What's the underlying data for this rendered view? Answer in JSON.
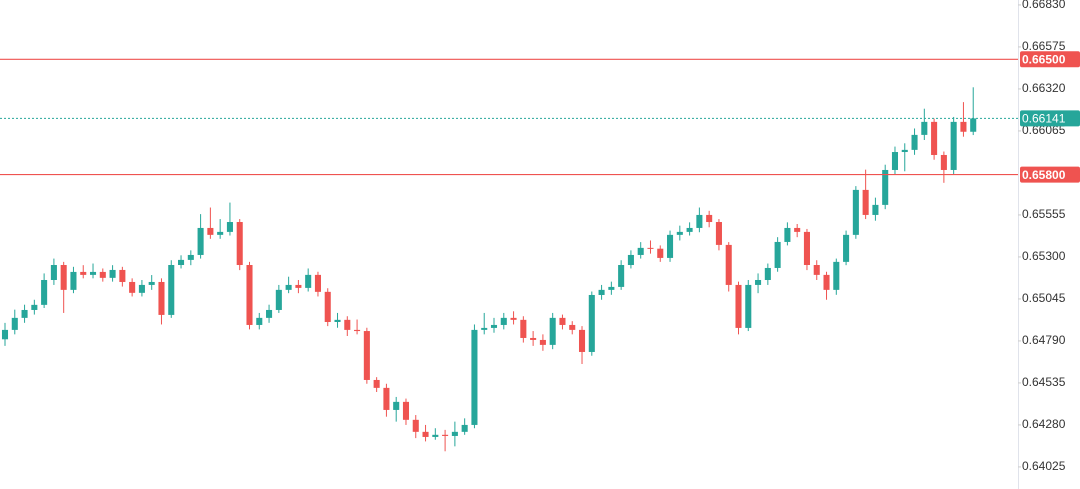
{
  "chart_data": {
    "type": "candlestick",
    "up_color": "#26a69a",
    "down_color": "#ef5350",
    "ylim": [
      0.63891,
      0.6686
    ],
    "yticks": [
      {
        "value": 0.6683,
        "label": "0.66830"
      },
      {
        "value": 0.66575,
        "label": "0.66575"
      },
      {
        "value": 0.6632,
        "label": "0.66320"
      },
      {
        "value": 0.66065,
        "label": "0.66065"
      },
      {
        "value": 0.65555,
        "label": "0.65555"
      },
      {
        "value": 0.653,
        "label": "0.65300"
      },
      {
        "value": 0.65045,
        "label": "0.65045"
      },
      {
        "value": 0.6479,
        "label": "0.64790"
      },
      {
        "value": 0.64535,
        "label": "0.64535"
      },
      {
        "value": 0.6428,
        "label": "0.64280"
      },
      {
        "value": 0.64025,
        "label": "0.64025"
      }
    ],
    "levels": [
      {
        "value": 0.665,
        "label": "0.66500",
        "color": "#ef5350"
      },
      {
        "value": 0.658,
        "label": "0.65800",
        "color": "#ef5350"
      }
    ],
    "last_price": {
      "value": 0.66141,
      "color": "#26a69a"
    },
    "open": [
      0.648,
      0.64857,
      0.6493,
      0.64978,
      0.65009,
      0.6516,
      0.65251,
      0.651,
      0.65209,
      0.65191,
      0.65209,
      0.65173,
      0.65221,
      0.65148,
      0.65082,
      0.6513,
      0.65148,
      0.64948,
      0.65251,
      0.65282,
      0.65312,
      0.65476,
      0.65434,
      0.65452,
      0.65512,
      0.65251,
      0.64887,
      0.6493,
      0.64978,
      0.651,
      0.6513,
      0.65112,
      0.65191,
      0.65088,
      0.64905,
      0.64918,
      0.64857,
      0.6485,
      0.64553,
      0.64505,
      0.64371,
      0.6442,
      0.64311,
      0.64238,
      0.64207,
      0.6422,
      0.64213,
      0.64238,
      0.6428,
      0.64857,
      0.64869,
      0.64887,
      0.6493,
      0.64918,
      0.64808,
      0.64796,
      0.64766,
      0.6493,
      0.64887,
      0.64857,
      0.64723,
      0.65069,
      0.651,
      0.65118,
      0.65251,
      0.65312,
      0.65355,
      0.6535,
      0.65294,
      0.65434,
      0.65452,
      0.65476,
      0.65555,
      0.65512,
      0.65373,
      0.6513,
      0.64869,
      0.6513,
      0.6516,
      0.65233,
      0.65391,
      0.65476,
      0.65452,
      0.65251,
      0.65191,
      0.651,
      0.6527,
      0.65434,
      0.65707,
      0.65555,
      0.65616,
      0.65828,
      0.65937,
      0.6595,
      0.66041,
      0.6612,
      0.65919,
      0.65828,
      0.6612,
      0.6606
    ],
    "high": [
      0.649,
      0.6498,
      0.6501,
      0.6504,
      0.652,
      0.6529,
      0.6527,
      0.6524,
      0.6525,
      0.6526,
      0.6523,
      0.6525,
      0.6524,
      0.6517,
      0.6516,
      0.6519,
      0.6517,
      0.6528,
      0.6531,
      0.6534,
      0.6556,
      0.656,
      0.6553,
      0.6563,
      0.6553,
      0.6527,
      0.6496,
      0.6501,
      0.6513,
      0.6518,
      0.6516,
      0.6523,
      0.6521,
      0.6511,
      0.6496,
      0.6494,
      0.6492,
      0.6487,
      0.6457,
      0.6453,
      0.6445,
      0.6444,
      0.6434,
      0.6428,
      0.6426,
      0.6425,
      0.643,
      0.6432,
      0.6489,
      0.6496,
      0.6493,
      0.6496,
      0.6497,
      0.6494,
      0.6485,
      0.6483,
      0.6496,
      0.6495,
      0.6491,
      0.6488,
      0.6509,
      0.6513,
      0.6515,
      0.6528,
      0.6534,
      0.6539,
      0.654,
      0.6537,
      0.6546,
      0.6549,
      0.6551,
      0.656,
      0.6558,
      0.6553,
      0.6539,
      0.6515,
      0.6516,
      0.652,
      0.6526,
      0.6542,
      0.6551,
      0.655,
      0.6547,
      0.6528,
      0.6521,
      0.6529,
      0.6546,
      0.6573,
      0.6583,
      0.6566,
      0.6586,
      0.6597,
      0.6599,
      0.6608,
      0.662,
      0.6614,
      0.6594,
      0.6615,
      0.6624,
      0.6633
    ],
    "low": [
      0.6476,
      0.6483,
      0.649,
      0.6495,
      0.6499,
      0.6513,
      0.6496,
      0.6508,
      0.6517,
      0.6517,
      0.6515,
      0.6515,
      0.6512,
      0.6506,
      0.6506,
      0.651,
      0.6489,
      0.6493,
      0.6523,
      0.6525,
      0.6529,
      0.6541,
      0.6541,
      0.6543,
      0.6522,
      0.6486,
      0.6486,
      0.649,
      0.6496,
      0.6508,
      0.6508,
      0.6509,
      0.6506,
      0.6488,
      0.6487,
      0.6482,
      0.6483,
      0.6453,
      0.6448,
      0.6433,
      0.643,
      0.6428,
      0.642,
      0.6418,
      0.6419,
      0.6412,
      0.6415,
      0.6422,
      0.6426,
      0.6483,
      0.6484,
      0.6486,
      0.6489,
      0.6478,
      0.6476,
      0.6473,
      0.6474,
      0.6486,
      0.6483,
      0.6465,
      0.647,
      0.6504,
      0.6507,
      0.651,
      0.6523,
      0.6529,
      0.6532,
      0.6527,
      0.6527,
      0.654,
      0.6543,
      0.6545,
      0.6548,
      0.6534,
      0.6509,
      0.6483,
      0.6485,
      0.6508,
      0.6513,
      0.6521,
      0.6537,
      0.6542,
      0.6522,
      0.6516,
      0.6504,
      0.6507,
      0.6525,
      0.6541,
      0.6553,
      0.6552,
      0.6559,
      0.658,
      0.6582,
      0.6592,
      0.6601,
      0.6589,
      0.6575,
      0.658,
      0.6603,
      0.6604
    ],
    "close": [
      0.64857,
      0.6493,
      0.64978,
      0.65009,
      0.6516,
      0.65251,
      0.651,
      0.65209,
      0.65191,
      0.65209,
      0.65173,
      0.65221,
      0.65148,
      0.65082,
      0.6513,
      0.65148,
      0.64948,
      0.65251,
      0.65282,
      0.65312,
      0.65476,
      0.65434,
      0.65452,
      0.65512,
      0.65251,
      0.64887,
      0.6493,
      0.64978,
      0.651,
      0.6513,
      0.65112,
      0.65191,
      0.65088,
      0.64905,
      0.64918,
      0.64857,
      0.6485,
      0.64553,
      0.64505,
      0.64371,
      0.6442,
      0.64311,
      0.64238,
      0.64207,
      0.6422,
      0.64213,
      0.64238,
      0.6428,
      0.64857,
      0.64869,
      0.64887,
      0.6493,
      0.64918,
      0.64808,
      0.64796,
      0.64766,
      0.6493,
      0.64887,
      0.64857,
      0.64723,
      0.65069,
      0.651,
      0.65118,
      0.65251,
      0.65312,
      0.65355,
      0.6535,
      0.65294,
      0.65434,
      0.65452,
      0.65476,
      0.65555,
      0.65512,
      0.65373,
      0.6513,
      0.64869,
      0.6513,
      0.6516,
      0.65233,
      0.65391,
      0.65476,
      0.65452,
      0.65251,
      0.65191,
      0.651,
      0.6527,
      0.65434,
      0.65707,
      0.65555,
      0.65616,
      0.65828,
      0.65937,
      0.6595,
      0.66041,
      0.6612,
      0.65919,
      0.65828,
      0.6612,
      0.6606,
      0.66141
    ]
  }
}
